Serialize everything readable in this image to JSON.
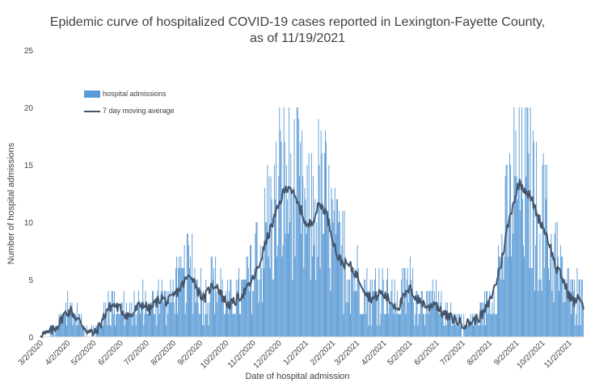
{
  "chart_data": {
    "type": "bar",
    "title_line1": "Epidemic curve of hospitalized COVID-19 cases reported in Lexington-Fayette County,",
    "title_line2": "as of 11/19/2021",
    "xlabel": "Date of hospital admission",
    "ylabel": "Number of hospital admissions",
    "ylim": [
      0,
      25
    ],
    "yticks": [
      0,
      5,
      10,
      15,
      20,
      25
    ],
    "x_start": "2020-03-02",
    "x_end": "2021-11-19",
    "xticks": [
      "3/2/2020",
      "4/2/2020",
      "5/2/2020",
      "6/2/2020",
      "7/2/2020",
      "8/2/2020",
      "9/2/2020",
      "10/2/2020",
      "11/2/2020",
      "12/2/2020",
      "1/2/2021",
      "2/2/2021",
      "3/2/2021",
      "4/2/2021",
      "5/2/2021",
      "6/2/2021",
      "7/2/2021",
      "8/2/2021",
      "9/2/2021",
      "10/2/2021",
      "11/2/2021"
    ],
    "legend": {
      "placement": "top-left",
      "entries": [
        "hospital admissions",
        "7 day moving average"
      ]
    },
    "colors": {
      "bars": "#5b9bd5",
      "average": "#44546a",
      "text": "#404040",
      "axis": "#d9d9d9"
    },
    "moving_average_series": {
      "name": "7 day moving average",
      "x": [
        "2020-03-02",
        "2020-03-09",
        "2020-03-16",
        "2020-03-23",
        "2020-03-30",
        "2020-04-06",
        "2020-04-13",
        "2020-04-20",
        "2020-04-27",
        "2020-05-04",
        "2020-05-11",
        "2020-05-18",
        "2020-05-25",
        "2020-06-01",
        "2020-06-08",
        "2020-06-15",
        "2020-06-22",
        "2020-06-29",
        "2020-07-06",
        "2020-07-13",
        "2020-07-20",
        "2020-07-27",
        "2020-08-03",
        "2020-08-10",
        "2020-08-17",
        "2020-08-24",
        "2020-08-31",
        "2020-09-07",
        "2020-09-14",
        "2020-09-21",
        "2020-09-28",
        "2020-10-05",
        "2020-10-12",
        "2020-10-19",
        "2020-10-26",
        "2020-11-02",
        "2020-11-09",
        "2020-11-16",
        "2020-11-23",
        "2020-11-30",
        "2020-12-07",
        "2020-12-14",
        "2020-12-21",
        "2020-12-28",
        "2021-01-04",
        "2021-01-11",
        "2021-01-18",
        "2021-01-25",
        "2021-02-01",
        "2021-02-08",
        "2021-02-15",
        "2021-02-22",
        "2021-03-01",
        "2021-03-08",
        "2021-03-15",
        "2021-03-22",
        "2021-03-29",
        "2021-04-05",
        "2021-04-12",
        "2021-04-19",
        "2021-04-26",
        "2021-05-03",
        "2021-05-10",
        "2021-05-17",
        "2021-05-24",
        "2021-05-31",
        "2021-06-07",
        "2021-06-14",
        "2021-06-21",
        "2021-06-28",
        "2021-07-05",
        "2021-07-12",
        "2021-07-19",
        "2021-07-26",
        "2021-08-02",
        "2021-08-09",
        "2021-08-16",
        "2021-08-23",
        "2021-08-30",
        "2021-09-06",
        "2021-09-13",
        "2021-09-20",
        "2021-09-27",
        "2021-10-04",
        "2021-10-11",
        "2021-10-18",
        "2021-10-25",
        "2021-11-01",
        "2021-11-08",
        "2021-11-15",
        "2021-11-19"
      ],
      "values": [
        0.3,
        0.2,
        0.6,
        1.1,
        2.0,
        2.3,
        1.6,
        1.0,
        0.4,
        0.3,
        1.2,
        2.4,
        2.8,
        2.5,
        2.0,
        1.8,
        2.6,
        2.9,
        2.3,
        3.0,
        3.4,
        3.0,
        3.6,
        4.2,
        5.0,
        5.4,
        4.0,
        3.3,
        4.3,
        4.6,
        3.5,
        2.8,
        3.0,
        3.6,
        4.1,
        5.0,
        6.1,
        8.0,
        9.5,
        11.0,
        12.5,
        13.3,
        12.0,
        11.0,
        9.5,
        10.3,
        11.6,
        11.0,
        9.0,
        7.0,
        6.4,
        6.2,
        5.5,
        4.6,
        3.6,
        3.3,
        3.9,
        3.5,
        2.9,
        2.6,
        3.5,
        4.2,
        3.3,
        3.0,
        2.5,
        3.1,
        2.2,
        1.8,
        1.6,
        1.3,
        1.1,
        1.3,
        1.6,
        2.0,
        3.0,
        4.5,
        6.5,
        9.5,
        11.8,
        13.5,
        12.8,
        12.0,
        10.5,
        9.5,
        8.0,
        6.0,
        5.2,
        3.8,
        3.0,
        3.5,
        2.5
      ]
    },
    "admissions_note": "Daily bars (0-20 range) fluctuate around the moving average; peaks near 19-20 in Dec 2020 / Jan 2021 and Sep 2021."
  }
}
